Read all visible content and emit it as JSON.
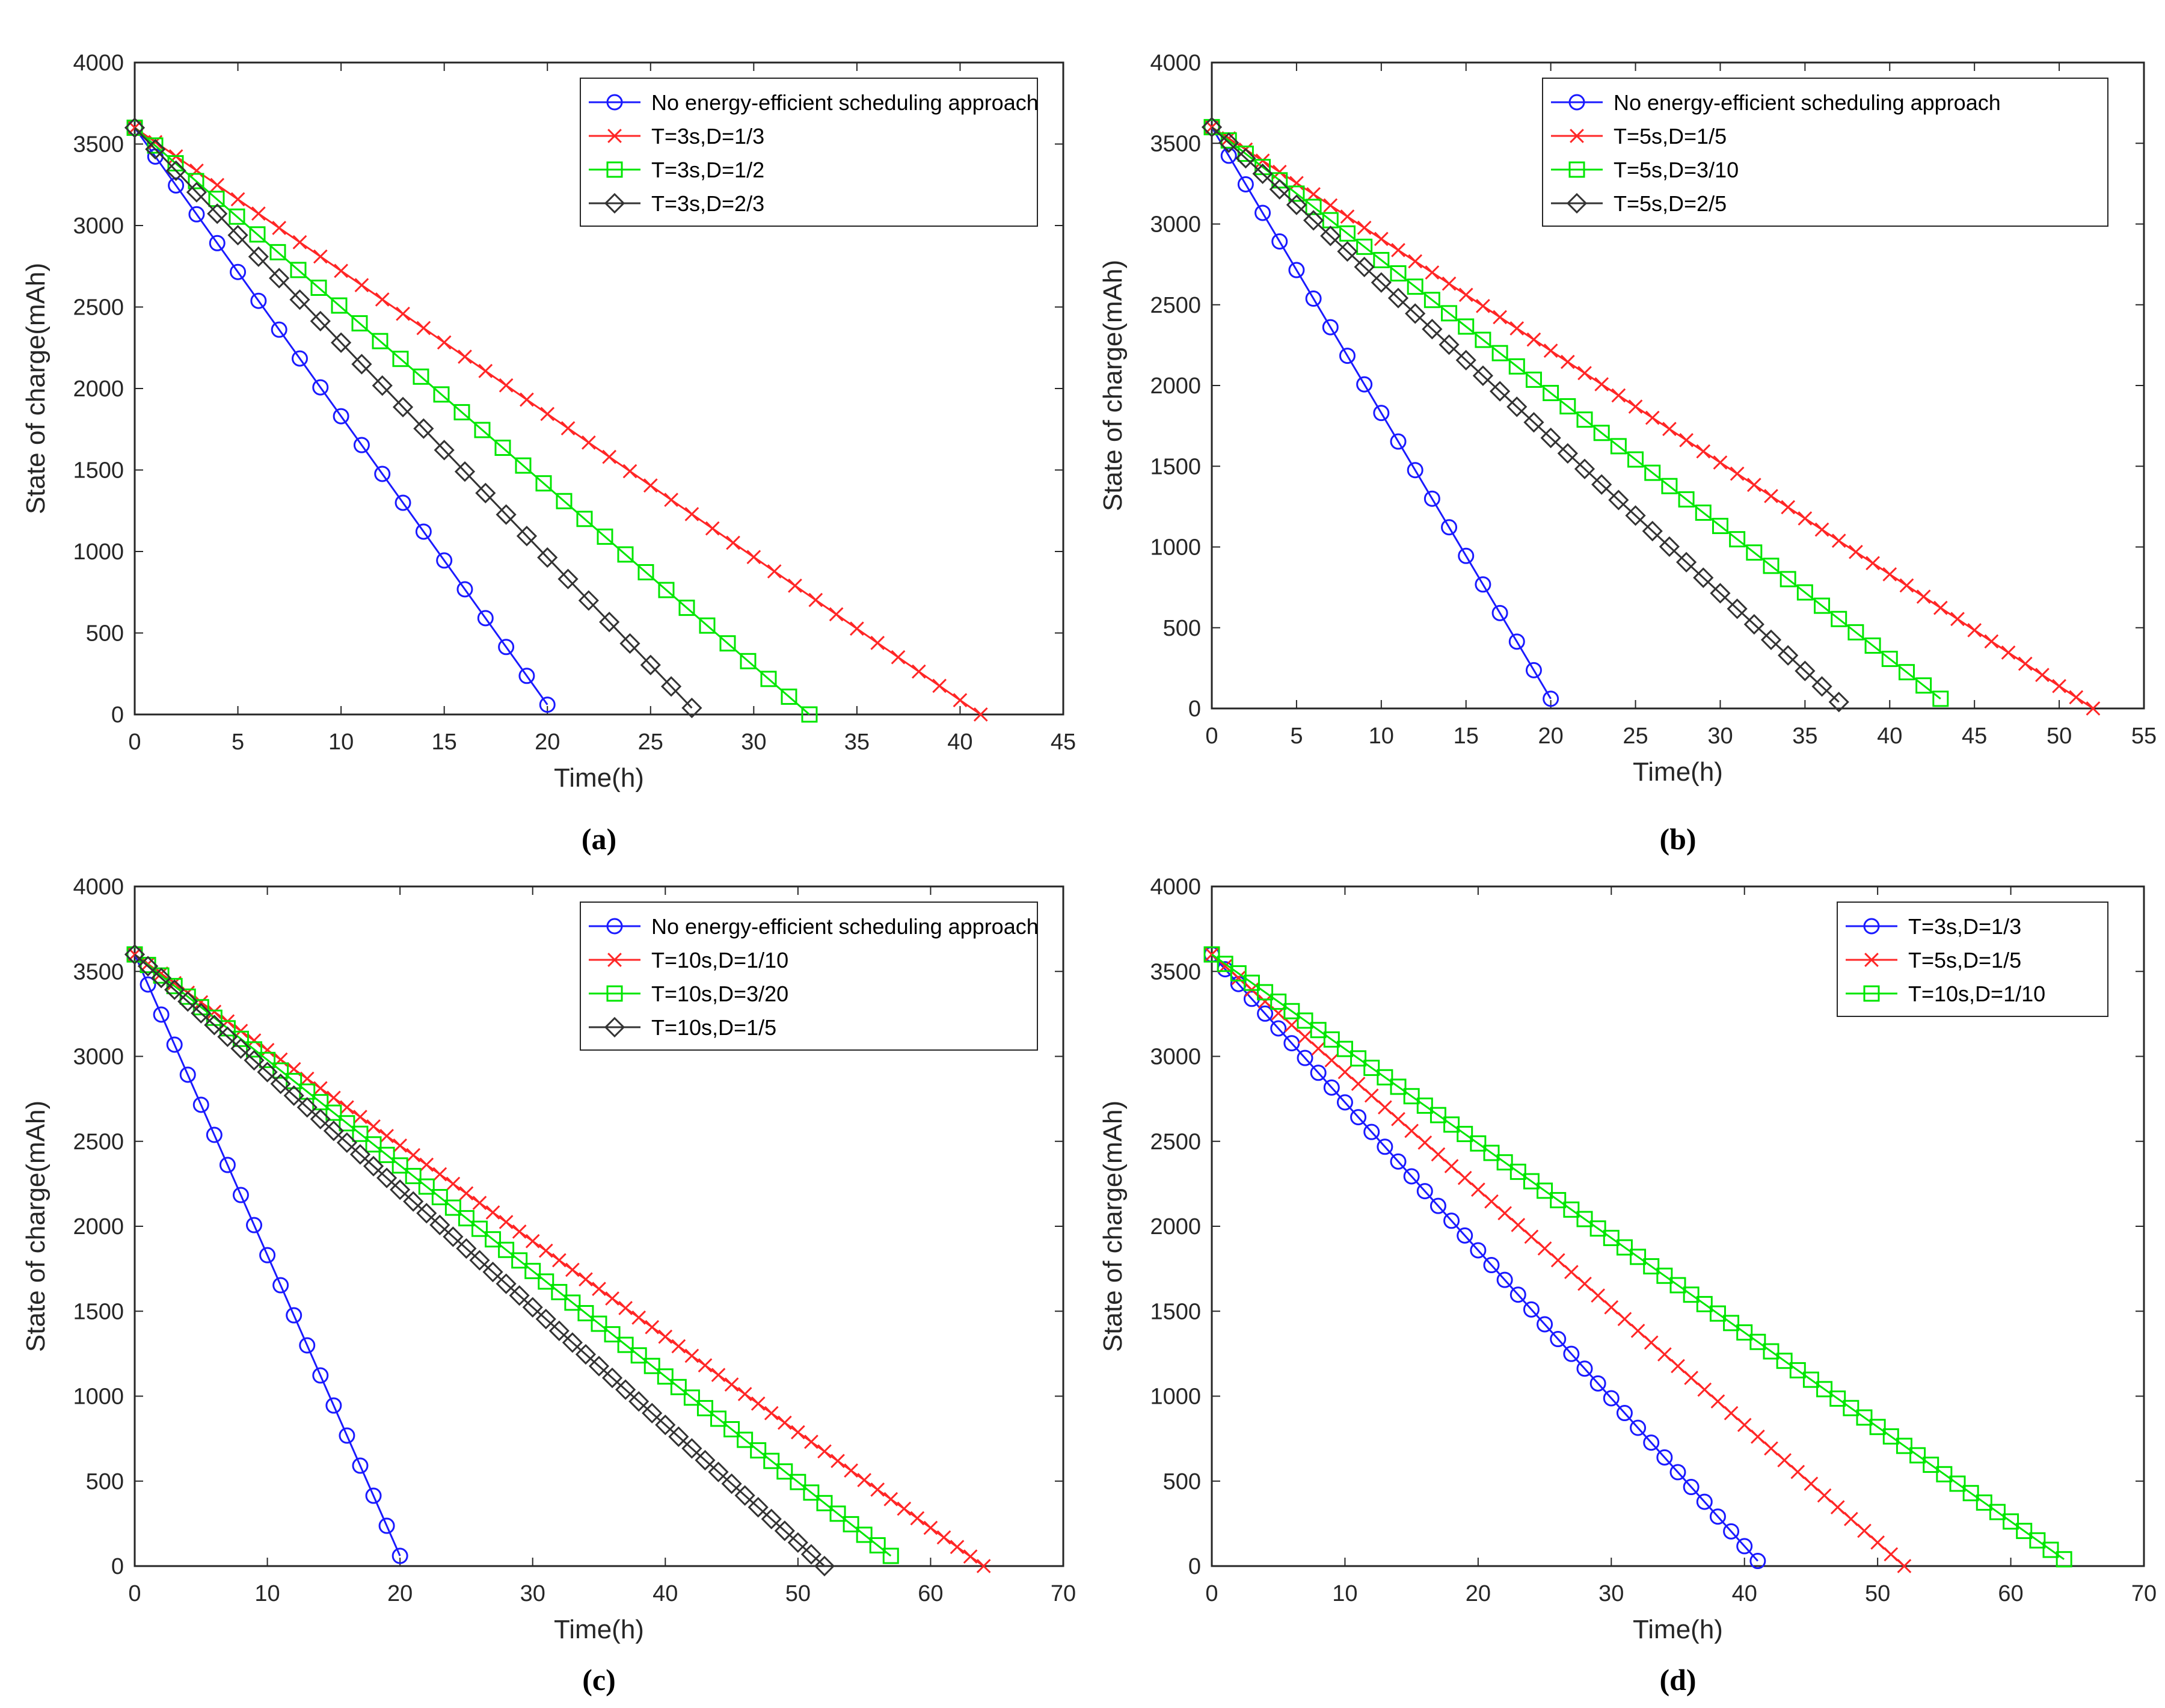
{
  "figure": {
    "colors": {
      "blue": "#1a1aff",
      "red": "#ff2626",
      "green": "#00e600",
      "black": "#333333",
      "axis": "#262626"
    }
  },
  "chart_data": [
    {
      "type": "line",
      "panel_label": "(a)",
      "xlabel": "Time(h)",
      "ylabel": "State of charge(mAh)",
      "xlim": [
        0,
        45
      ],
      "ylim": [
        0,
        4000
      ],
      "xticks": [
        0,
        5,
        10,
        15,
        20,
        25,
        30,
        35,
        40,
        45
      ],
      "yticks": [
        0,
        500,
        1000,
        1500,
        2000,
        2500,
        3000,
        3500,
        4000
      ],
      "legend_position": "top-right",
      "series": [
        {
          "name": "No energy-efficient scheduling approach",
          "color": "#1a1aff",
          "marker": "circle",
          "x0": 0,
          "y0": 3600,
          "x_end": 20,
          "y_end": 60,
          "marker_every": 1
        },
        {
          "name": "T=3s,D=1/3",
          "color": "#ff2626",
          "marker": "x",
          "x0": 0,
          "y0": 3600,
          "x_end": 41,
          "y_end": 0,
          "marker_every": 1
        },
        {
          "name": "T=3s,D=1/2",
          "color": "#00e600",
          "marker": "square",
          "x0": 0,
          "y0": 3600,
          "x_end": 32.7,
          "y_end": 0,
          "marker_every": 1
        },
        {
          "name": "T=3s,D=2/3",
          "color": "#333333",
          "marker": "diamond",
          "x0": 0,
          "y0": 3600,
          "x_end": 27,
          "y_end": 40,
          "marker_every": 1
        }
      ]
    },
    {
      "type": "line",
      "panel_label": "(b)",
      "xlabel": "Time(h)",
      "ylabel": "State of charge(mAh)",
      "xlim": [
        0,
        55
      ],
      "ylim": [
        0,
        4000
      ],
      "xticks": [
        0,
        5,
        10,
        15,
        20,
        25,
        30,
        35,
        40,
        45,
        50,
        55
      ],
      "yticks": [
        0,
        500,
        1000,
        1500,
        2000,
        2500,
        3000,
        3500,
        4000
      ],
      "legend_position": "top-right",
      "series": [
        {
          "name": "No energy-efficient scheduling approach",
          "color": "#1a1aff",
          "marker": "circle",
          "x0": 0,
          "y0": 3600,
          "x_end": 20,
          "y_end": 60,
          "marker_every": 1
        },
        {
          "name": "T=5s,D=1/5",
          "color": "#ff2626",
          "marker": "x",
          "x0": 0,
          "y0": 3600,
          "x_end": 52,
          "y_end": 0,
          "marker_every": 1
        },
        {
          "name": "T=5s,D=3/10",
          "color": "#00e600",
          "marker": "square",
          "x0": 0,
          "y0": 3600,
          "x_end": 43,
          "y_end": 60,
          "marker_every": 1
        },
        {
          "name": "T=5s,D=2/5",
          "color": "#333333",
          "marker": "diamond",
          "x0": 0,
          "y0": 3600,
          "x_end": 37,
          "y_end": 40,
          "marker_every": 1
        }
      ]
    },
    {
      "type": "line",
      "panel_label": "(c)",
      "xlabel": "Time(h)",
      "ylabel": "State of charge(mAh)",
      "xlim": [
        0,
        70
      ],
      "ylim": [
        0,
        4000
      ],
      "xticks": [
        0,
        10,
        20,
        30,
        40,
        50,
        60,
        70
      ],
      "yticks": [
        0,
        500,
        1000,
        1500,
        2000,
        2500,
        3000,
        3500,
        4000
      ],
      "legend_position": "top-right",
      "series": [
        {
          "name": "No energy-efficient scheduling approach",
          "color": "#1a1aff",
          "marker": "circle",
          "x0": 0,
          "y0": 3600,
          "x_end": 20,
          "y_end": 60,
          "marker_every": 1
        },
        {
          "name": "T=10s,D=1/10",
          "color": "#ff2626",
          "marker": "x",
          "x0": 0,
          "y0": 3600,
          "x_end": 64,
          "y_end": 0,
          "marker_every": 1
        },
        {
          "name": "T=10s,D=3/20",
          "color": "#00e600",
          "marker": "square",
          "x0": 0,
          "y0": 3600,
          "x_end": 57,
          "y_end": 60,
          "marker_every": 1
        },
        {
          "name": "T=10s,D=1/5",
          "color": "#333333",
          "marker": "diamond",
          "x0": 0,
          "y0": 3600,
          "x_end": 52,
          "y_end": 0,
          "marker_every": 1
        }
      ]
    },
    {
      "type": "line",
      "panel_label": "(d)",
      "xlabel": "Time(h)",
      "ylabel": "State of charge(mAh)",
      "xlim": [
        0,
        70
      ],
      "ylim": [
        0,
        4000
      ],
      "xticks": [
        0,
        10,
        20,
        30,
        40,
        50,
        60,
        70
      ],
      "yticks": [
        0,
        500,
        1000,
        1500,
        2000,
        2500,
        3000,
        3500,
        4000
      ],
      "legend_position": "top-right",
      "series": [
        {
          "name": "T=3s,D=1/3",
          "color": "#1a1aff",
          "marker": "circle",
          "x0": 0,
          "y0": 3600,
          "x_end": 41,
          "y_end": 30,
          "marker_every": 1
        },
        {
          "name": "T=5s,D=1/5",
          "color": "#ff2626",
          "marker": "x",
          "x0": 0,
          "y0": 3600,
          "x_end": 52,
          "y_end": 0,
          "marker_every": 1
        },
        {
          "name": "T=10s,D=1/10",
          "color": "#00e600",
          "marker": "square",
          "x0": 0,
          "y0": 3600,
          "x_end": 64,
          "y_end": 40,
          "marker_every": 1
        }
      ]
    }
  ]
}
